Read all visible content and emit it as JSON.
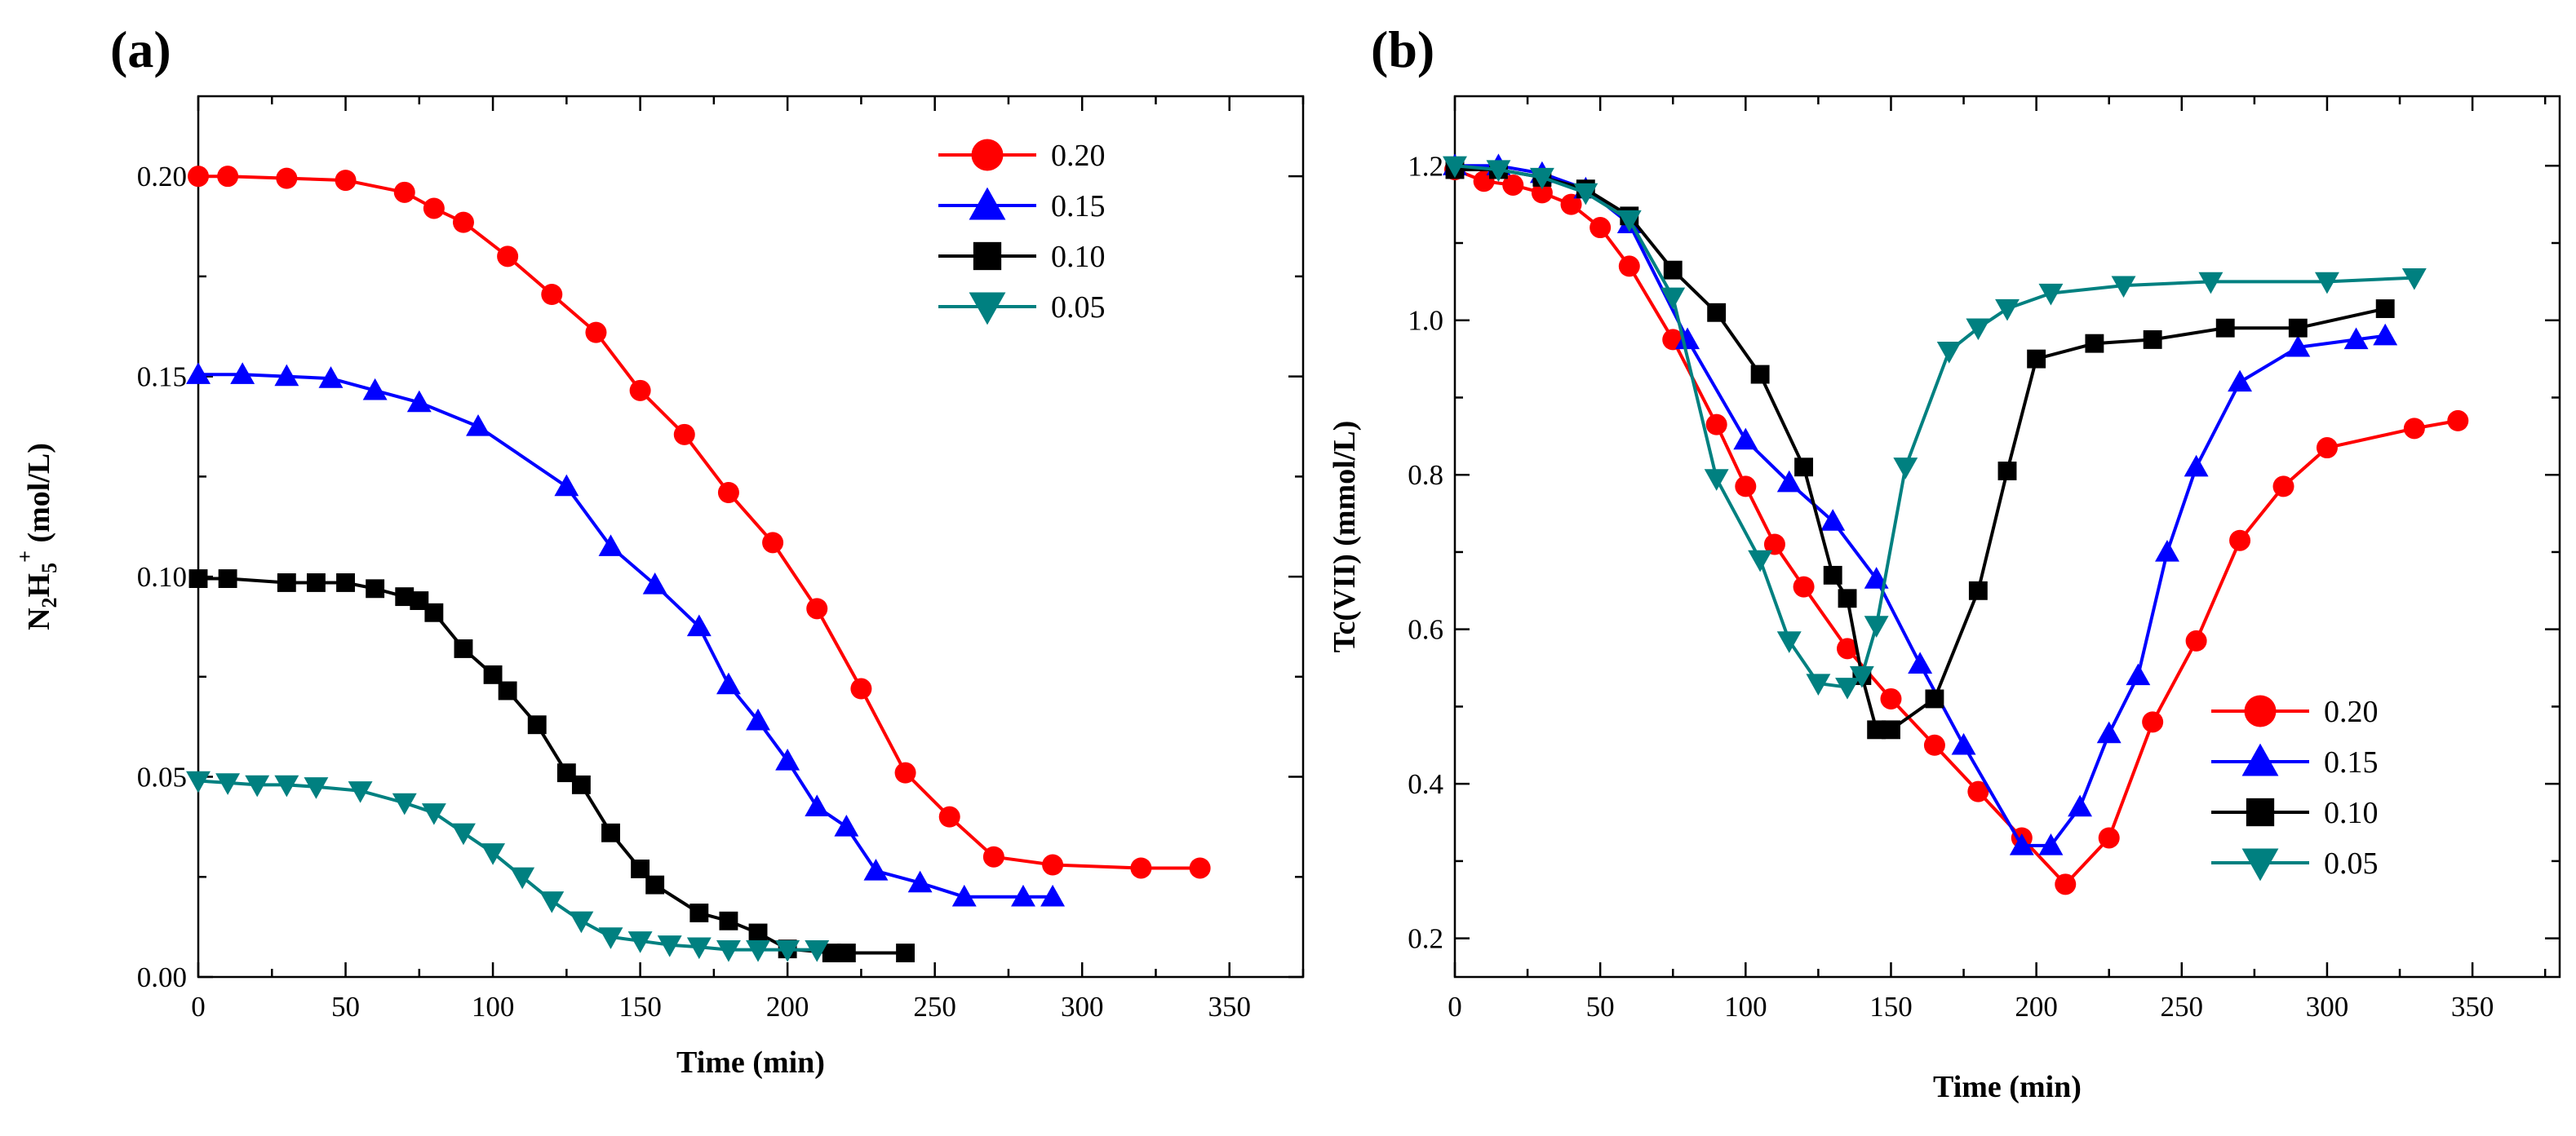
{
  "chart_data": [
    {
      "type": "line",
      "panel_label": "(a)",
      "xlabel": "Time (min)",
      "ylabel_main": "N",
      "ylabel_sub1": "2",
      "ylabel_mid": "H",
      "ylabel_sub2": "5",
      "ylabel_sup": "+",
      "ylabel_unit": " (mol/L)",
      "xlim": [
        0,
        375
      ],
      "ylim": [
        0,
        0.22
      ],
      "xticks": [
        0,
        50,
        100,
        150,
        200,
        250,
        300,
        350
      ],
      "xtick_labels": [
        "0",
        "50",
        "100",
        "150",
        "200",
        "250",
        "300",
        "350"
      ],
      "yticks": [
        0,
        0.05,
        0.1,
        0.15,
        0.2
      ],
      "ytick_labels": [
        "0.00",
        "0.05",
        "0.10",
        "0.15",
        "0.20"
      ],
      "legend_position": "top-right",
      "series": [
        {
          "name": "0.20",
          "color": "#ff0000",
          "marker": "circle",
          "x": [
            0,
            10,
            30,
            50,
            70,
            80,
            90,
            105,
            120,
            135,
            150,
            165,
            180,
            195,
            210,
            225,
            240,
            255,
            270,
            290,
            320,
            340
          ],
          "y": [
            0.2,
            0.2,
            0.1995,
            0.199,
            0.196,
            0.192,
            0.1885,
            0.18,
            0.1705,
            0.161,
            0.1465,
            0.1355,
            0.121,
            0.1085,
            0.092,
            0.072,
            0.051,
            0.04,
            0.03,
            0.028,
            0.0272,
            0.0272
          ]
        },
        {
          "name": "0.15",
          "color": "#0000ff",
          "marker": "triangle-up",
          "x": [
            0,
            15,
            30,
            45,
            60,
            75,
            95,
            125,
            140,
            155,
            170,
            180,
            190,
            200,
            210,
            220,
            230,
            245,
            260,
            280,
            290
          ],
          "y": [
            0.1505,
            0.1505,
            0.15,
            0.1495,
            0.1465,
            0.1435,
            0.1375,
            0.1225,
            0.1075,
            0.098,
            0.0875,
            0.073,
            0.064,
            0.054,
            0.0425,
            0.0375,
            0.0265,
            0.0235,
            0.02,
            0.02,
            0.02
          ]
        },
        {
          "name": "0.10",
          "color": "#000000",
          "marker": "square",
          "x": [
            0,
            10,
            30,
            40,
            50,
            60,
            70,
            75,
            80,
            90,
            100,
            105,
            115,
            125,
            130,
            140,
            150,
            155,
            170,
            180,
            190,
            200,
            215,
            220,
            240
          ],
          "y": [
            0.0995,
            0.0995,
            0.0985,
            0.0985,
            0.0985,
            0.097,
            0.095,
            0.094,
            0.091,
            0.082,
            0.0755,
            0.0715,
            0.063,
            0.051,
            0.048,
            0.036,
            0.027,
            0.023,
            0.016,
            0.014,
            0.011,
            0.007,
            0.006,
            0.006,
            0.006
          ]
        },
        {
          "name": "0.05",
          "color": "#008080",
          "marker": "triangle-down",
          "x": [
            0,
            10,
            20,
            30,
            40,
            55,
            70,
            80,
            90,
            100,
            110,
            120,
            130,
            140,
            150,
            160,
            170,
            180,
            190,
            200,
            210
          ],
          "y": [
            0.049,
            0.0485,
            0.048,
            0.048,
            0.0475,
            0.0465,
            0.0435,
            0.041,
            0.036,
            0.031,
            0.025,
            0.019,
            0.014,
            0.01,
            0.009,
            0.008,
            0.0075,
            0.0068,
            0.0068,
            0.0068,
            0.0068
          ]
        }
      ]
    },
    {
      "type": "line",
      "panel_label": "(b)",
      "xlabel": "Time (min)",
      "ylabel": "Tc(VII) (mmol/L)",
      "xlim": [
        0,
        380
      ],
      "ylim": [
        0.15,
        1.29
      ],
      "xticks": [
        0,
        50,
        100,
        150,
        200,
        250,
        300,
        350
      ],
      "xtick_labels": [
        "0",
        "50",
        "100",
        "150",
        "200",
        "250",
        "300",
        "350"
      ],
      "yticks": [
        0.2,
        0.4,
        0.6,
        0.8,
        1.0,
        1.2
      ],
      "ytick_labels": [
        "0.2",
        "0.4",
        "0.6",
        "0.8",
        "1.0",
        "1.2"
      ],
      "legend_position": "bottom-right",
      "series": [
        {
          "name": "0.20",
          "color": "#ff0000",
          "marker": "circle",
          "x": [
            0,
            10,
            20,
            30,
            40,
            50,
            60,
            75,
            90,
            100,
            110,
            120,
            135,
            150,
            165,
            180,
            195,
            210,
            225,
            240,
            255,
            270,
            285,
            300,
            330,
            345
          ],
          "y": [
            1.195,
            1.18,
            1.175,
            1.165,
            1.15,
            1.12,
            1.07,
            0.975,
            0.865,
            0.785,
            0.71,
            0.655,
            0.575,
            0.51,
            0.45,
            0.39,
            0.33,
            0.27,
            0.33,
            0.48,
            0.585,
            0.715,
            0.785,
            0.835,
            0.86,
            0.87
          ]
        },
        {
          "name": "0.15",
          "color": "#0000ff",
          "marker": "triangle-up",
          "x": [
            0,
            15,
            30,
            45,
            60,
            80,
            100,
            115,
            130,
            145,
            160,
            175,
            195,
            205,
            215,
            225,
            235,
            245,
            255,
            270,
            290,
            310,
            320
          ],
          "y": [
            1.2,
            1.2,
            1.19,
            1.17,
            1.125,
            0.975,
            0.845,
            0.79,
            0.74,
            0.665,
            0.555,
            0.45,
            0.32,
            0.32,
            0.37,
            0.465,
            0.54,
            0.7,
            0.81,
            0.92,
            0.965,
            0.975,
            0.98
          ]
        },
        {
          "name": "0.10",
          "color": "#000000",
          "marker": "square",
          "x": [
            0,
            15,
            30,
            45,
            60,
            75,
            90,
            105,
            120,
            130,
            135,
            140,
            145,
            150,
            165,
            180,
            190,
            200,
            220,
            240,
            265,
            290,
            320
          ],
          "y": [
            1.195,
            1.195,
            1.185,
            1.17,
            1.135,
            1.065,
            1.01,
            0.93,
            0.81,
            0.67,
            0.64,
            0.54,
            0.47,
            0.47,
            0.51,
            0.65,
            0.805,
            0.95,
            0.97,
            0.975,
            0.99,
            0.99,
            1.015
          ]
        },
        {
          "name": "0.05",
          "color": "#008080",
          "marker": "triangle-down",
          "x": [
            0,
            15,
            30,
            45,
            60,
            75,
            90,
            105,
            115,
            125,
            135,
            140,
            145,
            155,
            170,
            180,
            190,
            205,
            230,
            260,
            300,
            330
          ],
          "y": [
            1.2,
            1.195,
            1.185,
            1.165,
            1.13,
            1.03,
            0.795,
            0.69,
            0.585,
            0.53,
            0.525,
            0.54,
            0.605,
            0.81,
            0.96,
            0.99,
            1.015,
            1.035,
            1.045,
            1.05,
            1.05,
            1.055
          ]
        }
      ]
    }
  ]
}
